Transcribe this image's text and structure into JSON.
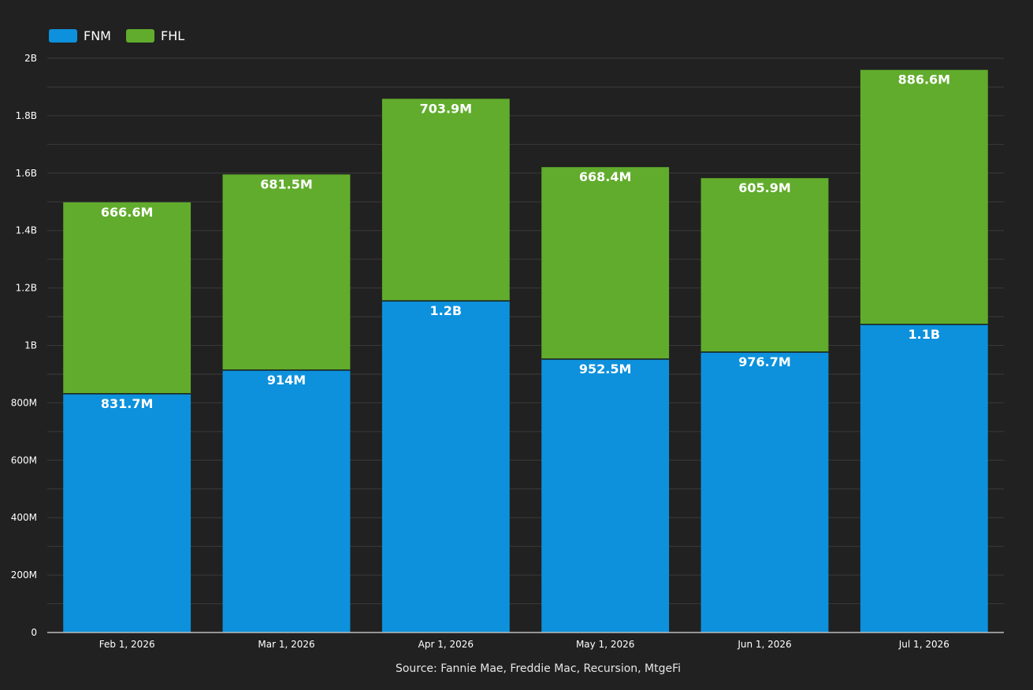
{
  "chart_data": {
    "type": "bar",
    "stacked": true,
    "categories": [
      "Feb 1, 2026",
      "Mar 1, 2026",
      "Apr 1, 2026",
      "May 1, 2026",
      "Jun 1, 2026",
      "Jul 1, 2026"
    ],
    "series": [
      {
        "name": "FNM",
        "color": "#0d91dc",
        "values": [
          831700000,
          914000000,
          1155000000,
          952500000,
          976700000,
          1073000000
        ],
        "labels": [
          "831.7M",
          "914M",
          "1.2B",
          "952.5M",
          "976.7M",
          "1.1B"
        ]
      },
      {
        "name": "FHL",
        "color": "#61ac2c",
        "values": [
          666600000,
          681500000,
          703900000,
          668400000,
          605900000,
          886600000
        ],
        "labels": [
          "666.6M",
          "681.5M",
          "703.9M",
          "668.4M",
          "605.9M",
          "886.6M"
        ]
      }
    ],
    "ylim": [
      0,
      2000000000
    ],
    "y_ticks": [
      {
        "value": 0,
        "label": "0"
      },
      {
        "value": 200000000,
        "label": "200M"
      },
      {
        "value": 400000000,
        "label": "400M"
      },
      {
        "value": 600000000,
        "label": "600M"
      },
      {
        "value": 800000000,
        "label": "800M"
      },
      {
        "value": 1000000000,
        "label": "1B"
      },
      {
        "value": 1200000000,
        "label": "1.2B"
      },
      {
        "value": 1400000000,
        "label": "1.4B"
      },
      {
        "value": 1600000000,
        "label": "1.6B"
      },
      {
        "value": 1800000000,
        "label": "1.8B"
      },
      {
        "value": 2000000000,
        "label": "2B"
      }
    ],
    "grid": true,
    "legend_position": "top-left",
    "title": "",
    "xlabel": "",
    "ylabel": "",
    "source": "Source: Fannie Mae, Freddie Mac, Recursion, MtgeFi"
  }
}
